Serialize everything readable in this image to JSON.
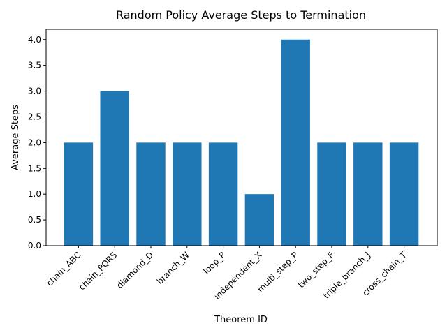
{
  "chart_data": {
    "type": "bar",
    "title": "Random Policy Average Steps to Termination",
    "xlabel": "Theorem ID",
    "ylabel": "Average Steps",
    "categories": [
      "chain_ABC",
      "chain_PQRS",
      "diamond_D",
      "branch_W",
      "loop_P",
      "independent_X",
      "multi_step_P",
      "two_step_F",
      "triple_branch_J",
      "cross_chain_T"
    ],
    "values": [
      2,
      3,
      2,
      2,
      2,
      1,
      4,
      2,
      2,
      2
    ],
    "ylim": [
      0,
      4.2
    ],
    "yticks": [
      0.0,
      0.5,
      1.0,
      1.5,
      2.0,
      2.5,
      3.0,
      3.5,
      4.0
    ],
    "grid": false,
    "bar_color": "#1f77b4",
    "x_tick_rotation_deg": 45
  }
}
